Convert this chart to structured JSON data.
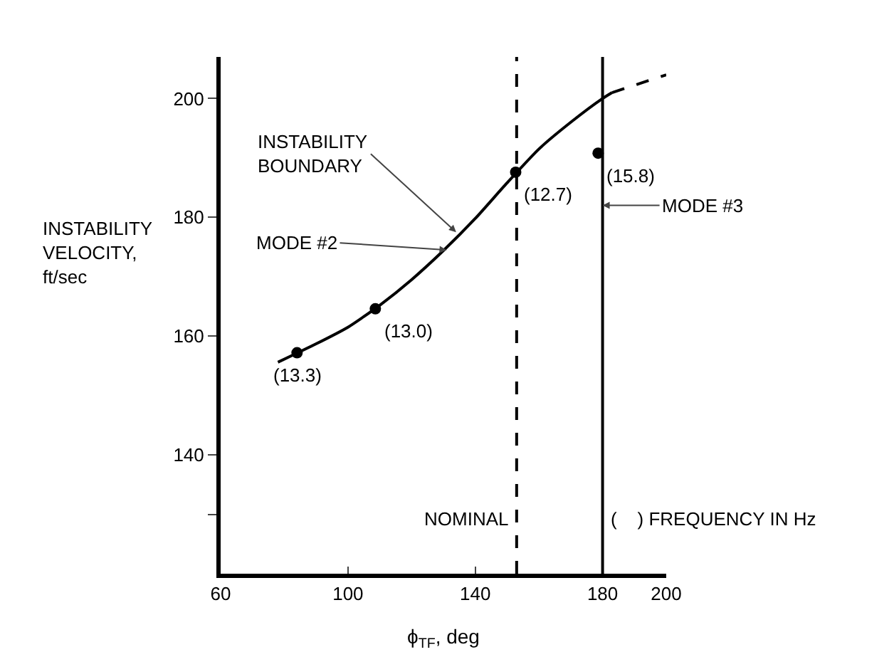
{
  "chart_data": {
    "type": "line",
    "xlabel": "ϕ$_{TF}$, deg",
    "ylabel": "INSTABILITY\nVELOCITY,\nft/sec",
    "xlim": [
      60,
      200
    ],
    "xticks": [
      60,
      100,
      140,
      180,
      200
    ],
    "ylim": [
      120,
      207
    ],
    "yticks": [
      {
        "value": 130,
        "label": null
      },
      140,
      160,
      180,
      200
    ],
    "series": [
      {
        "color": "#000000",
        "line_style": "solid",
        "marker": "none",
        "x": [
          78,
          90,
          100,
          110,
          120,
          130,
          140,
          150,
          160,
          170,
          180,
          183
        ],
        "values": [
          155.6,
          158.7,
          161.5,
          165.2,
          169.5,
          174.4,
          179.8,
          185.8,
          191.5,
          196,
          200,
          201
        ]
      },
      {
        "color": "#000000",
        "line_style": "dashed",
        "marker": "none",
        "x": [
          183,
          200
        ],
        "values": [
          201,
          204
        ]
      },
      {
        "type": "scatter",
        "color": "#000000",
        "marker": "circle",
        "x": [
          84,
          108.6,
          152.7,
          178.6
        ],
        "values": [
          157.2,
          164.6,
          187.6,
          190.8
        ]
      }
    ],
    "ref_lines": [
      {
        "axis": "x",
        "value": 153,
        "label": "NOMINAL",
        "line_style": "dashed",
        "color": "#000000"
      },
      {
        "axis": "x",
        "value": 180,
        "label": "MODE #3",
        "line_style": "solid",
        "color": "#000000"
      }
    ],
    "annotations": [
      {
        "text": "INSTABILITY\nBOUNDARY",
        "x": 134,
        "y": 177.5
      },
      {
        "text": "MODE #2",
        "x": 131,
        "y": 174.5
      },
      "(    ) FREQUENCY IN Hz",
      {
        "text": "(13.3)",
        "x": 84,
        "y": 157.2
      },
      {
        "text": "(13.0)",
        "x": 108.6,
        "y": 164.6
      },
      {
        "text": "(12.7)",
        "x": 152.7,
        "y": 187.6
      },
      {
        "text": "(15.8)",
        "x": 178.6,
        "y": 190.8
      }
    ],
    "grid": false
  }
}
